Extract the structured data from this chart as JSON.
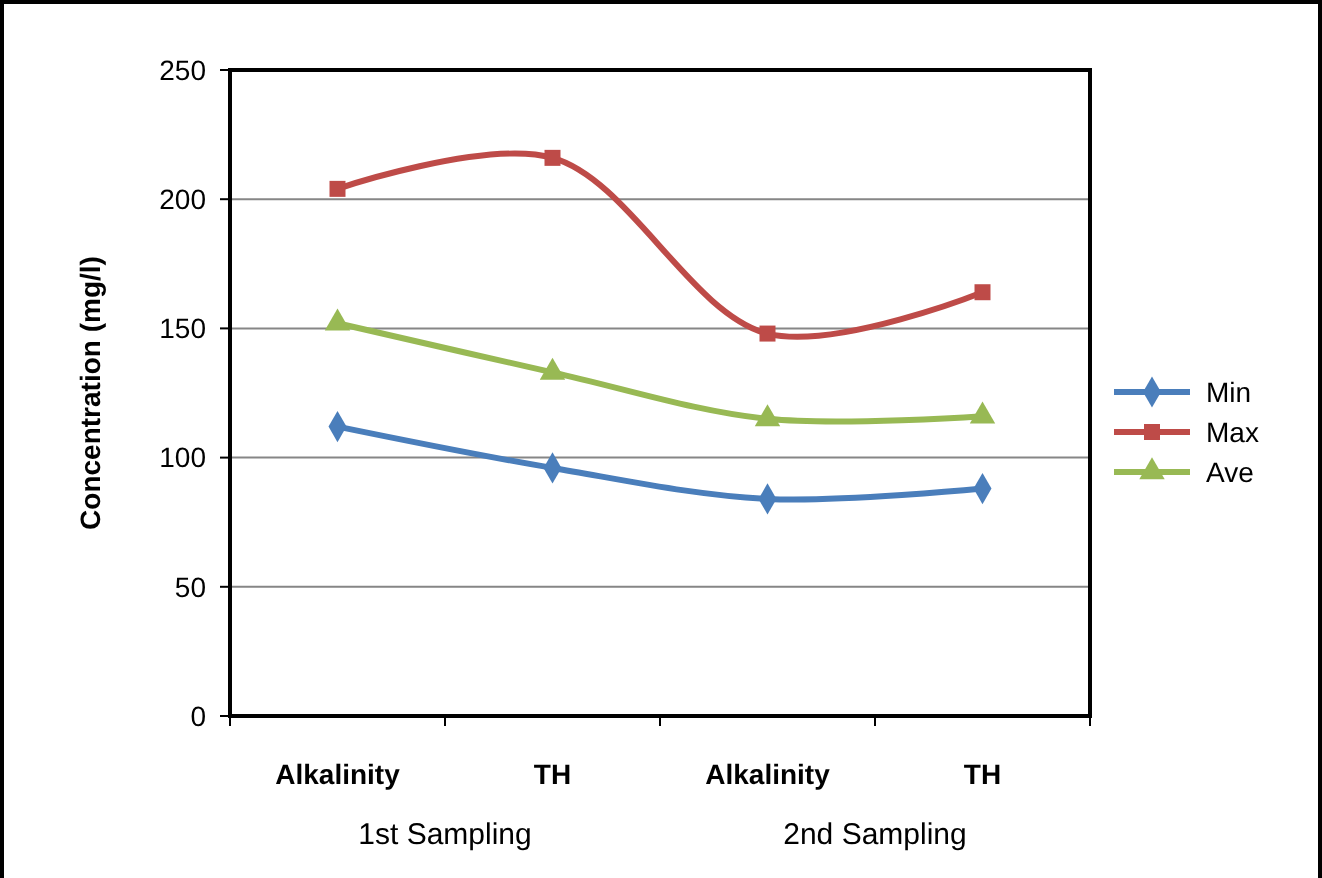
{
  "chart_data": {
    "type": "line",
    "ylabel": "Concentration (mg/l)",
    "categories": [
      "Alkalinity",
      "TH",
      "Alkalinity",
      "TH"
    ],
    "annotations": [
      "1st Sampling",
      "2nd Sampling"
    ],
    "ylim": [
      0,
      250
    ],
    "yticks": [
      0,
      50,
      100,
      150,
      200,
      250
    ],
    "grid": "y",
    "legend": "right",
    "line_style": "solid",
    "series": [
      {
        "name": "Min",
        "color": "#4a7ebb",
        "marker": "diamond",
        "values": [
          112,
          96,
          84,
          88
        ]
      },
      {
        "name": "Max",
        "color": "#be4b48",
        "marker": "square",
        "values": [
          204,
          216,
          148,
          164
        ]
      },
      {
        "name": "Ave",
        "color": "#98b954",
        "marker": "triangle",
        "values": [
          152,
          133,
          115,
          116
        ]
      }
    ]
  }
}
